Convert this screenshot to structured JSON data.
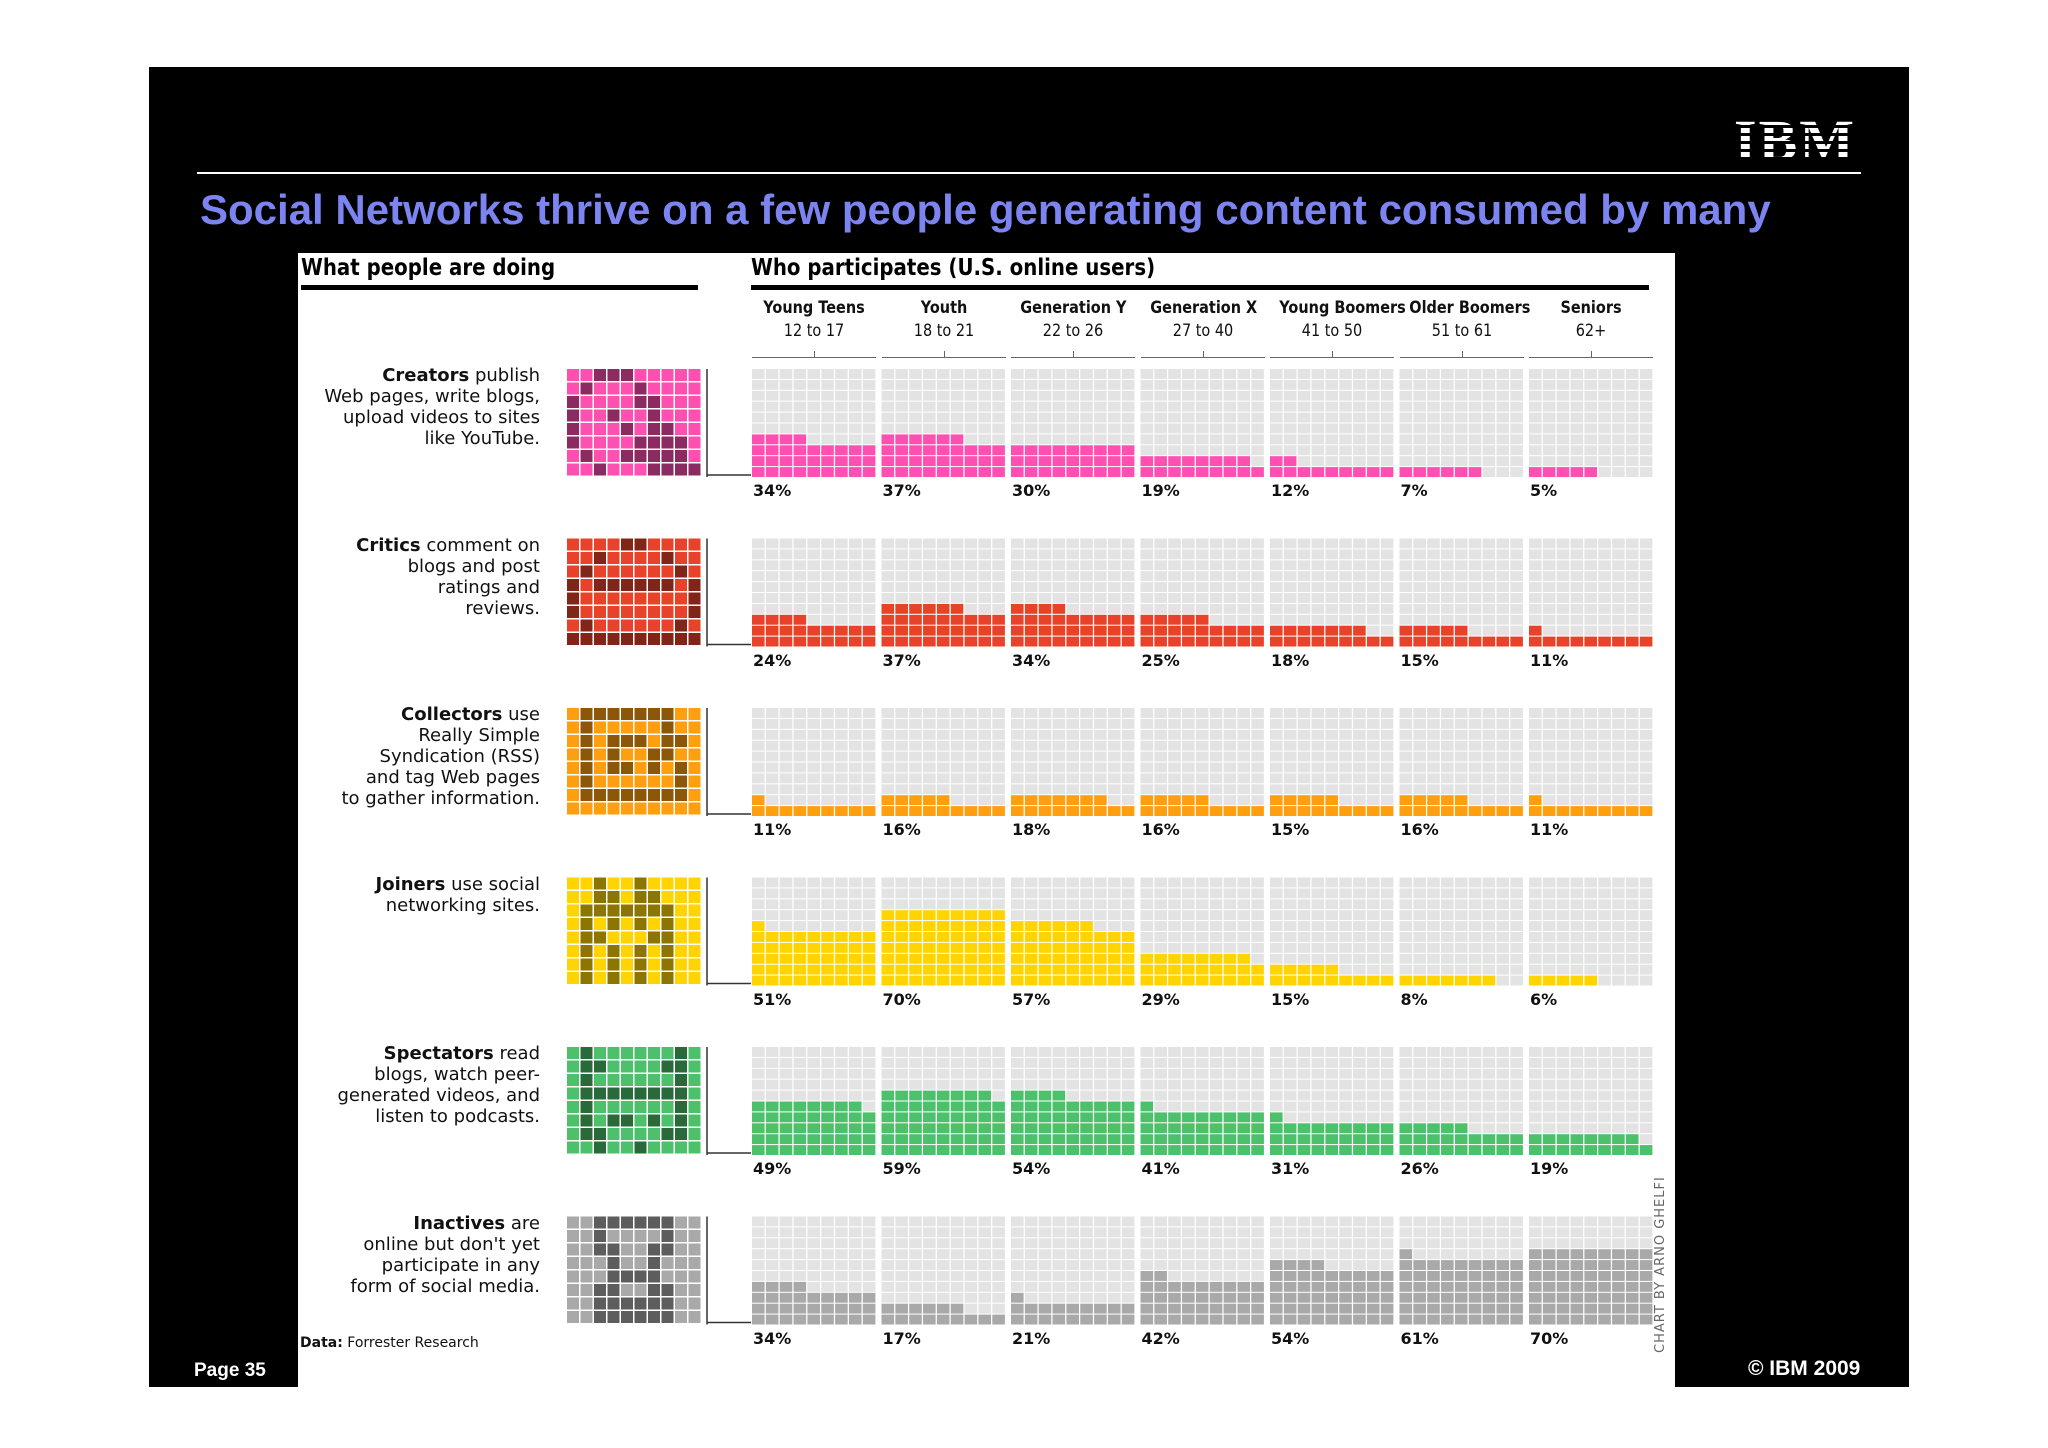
{
  "slide": {
    "logo": "IBM",
    "title": "Social Networks thrive on a few people generating content consumed by many",
    "page": "Page 35",
    "copyright": "© IBM 2009"
  },
  "chart_data": {
    "type": "bar",
    "title": "Who participates (U.S. online users)",
    "left_header": "What people are doing",
    "source_label": "Data:",
    "source": "Forrester Research",
    "credit": "CHART BY ARNO GHELFI",
    "categories": [
      {
        "name": "Young Teens",
        "ages": "12 to 17"
      },
      {
        "name": "Youth",
        "ages": "18 to 21"
      },
      {
        "name": "Generation Y",
        "ages": "22 to 26"
      },
      {
        "name": "Generation X",
        "ages": "27 to 40"
      },
      {
        "name": "Young Boomers",
        "ages": "41 to 50"
      },
      {
        "name": "Older Boomers",
        "ages": "51 to 61"
      },
      {
        "name": "Seniors",
        "ages": "62+"
      }
    ],
    "ylim": [
      0,
      100
    ],
    "series": [
      {
        "name": "Creators",
        "description": [
          "publish",
          "Web pages, write blogs,",
          "upload videos to sites",
          "like YouTube."
        ],
        "color": "#ff4fb0",
        "icon_letter": "C",
        "labels": [
          "34%",
          "37%",
          "30%",
          "19%",
          "12%",
          "7%",
          "5%"
        ],
        "values": [
          34,
          37,
          30,
          19,
          12,
          7,
          5
        ]
      },
      {
        "name": "Critics",
        "description": [
          "comment on",
          "blogs and post",
          "ratings and",
          "reviews."
        ],
        "color": "#e8432a",
        "icon_letter": "A",
        "labels": [
          "24%",
          "37%",
          "34%",
          "25%",
          "18%",
          "15%",
          "11%"
        ],
        "values": [
          24,
          37,
          34,
          25,
          18,
          15,
          11
        ]
      },
      {
        "name": "Collectors",
        "description": [
          "use",
          "Really Simple",
          "Syndication (RSS)",
          "and tag Web pages",
          "to gather information."
        ],
        "color": "#ff9f0f",
        "icon_letter": "R",
        "labels": [
          "11%",
          "16%",
          "18%",
          "16%",
          "15%",
          "16%",
          "11%"
        ],
        "values": [
          11,
          16,
          18,
          16,
          15,
          16,
          11
        ]
      },
      {
        "name": "Joiners",
        "description": [
          "use social",
          "networking sites."
        ],
        "color": "#ffd400",
        "icon_letter": "N",
        "labels": [
          "51%",
          "70%",
          "57%",
          "29%",
          "15%",
          "8%",
          "6%"
        ],
        "values": [
          51,
          70,
          57,
          29,
          15,
          8,
          6
        ]
      },
      {
        "name": "Spectators",
        "description": [
          "read",
          "blogs, watch peer-",
          "generated videos, and",
          "listen to podcasts."
        ],
        "color": "#4cc06a",
        "icon_letter": "B",
        "labels": [
          "49%",
          "59%",
          "54%",
          "41%",
          "31%",
          "26%",
          "19%"
        ],
        "values": [
          49,
          59,
          54,
          41,
          31,
          26,
          19
        ]
      },
      {
        "name": "Inactives",
        "description": [
          "are",
          "online but don't yet",
          "participate in any",
          "form of social media."
        ],
        "color": "#a9a9a9",
        "icon_letter": "X",
        "labels": [
          "34%",
          "17%",
          "21%",
          "42%",
          "54%",
          "61%",
          "70%"
        ],
        "values": [
          34,
          17,
          21,
          42,
          54,
          61,
          70
        ]
      }
    ]
  }
}
